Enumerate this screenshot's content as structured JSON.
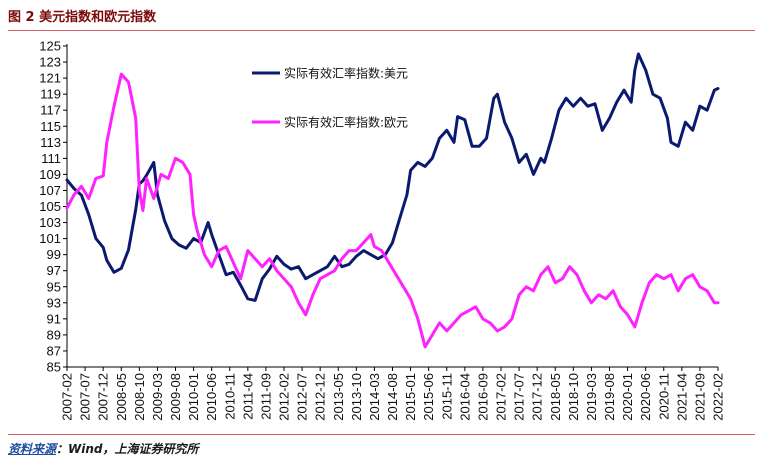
{
  "figure": {
    "title": "图 2  美元指数和欧元指数",
    "source_label": "资料来源",
    "source_text": "：Wind，上海证券研究所"
  },
  "colors": {
    "usd": "#0b1a6e",
    "eur": "#ff22ff",
    "rule": "#d86060",
    "axis": "#000000"
  },
  "chart_data": {
    "type": "line",
    "title": "",
    "xlabel": "",
    "ylabel": "",
    "ylim": [
      85,
      125
    ],
    "yticks": [
      85,
      87,
      89,
      91,
      93,
      95,
      97,
      99,
      101,
      103,
      105,
      107,
      109,
      111,
      113,
      115,
      117,
      119,
      121,
      123,
      125
    ],
    "xlim": [
      "2007-02",
      "2022-02"
    ],
    "xticks": [
      "2007-02",
      "2007-07",
      "2007-12",
      "2008-05",
      "2008-10",
      "2009-03",
      "2009-08",
      "2010-01",
      "2010-06",
      "2010-11",
      "2011-04",
      "2011-09",
      "2012-02",
      "2012-07",
      "2012-12",
      "2013-05",
      "2013-10",
      "2014-03",
      "2014-08",
      "2015-01",
      "2015-06",
      "2015-11",
      "2016-04",
      "2016-09",
      "2017-02",
      "2017-07",
      "2017-12",
      "2018-05",
      "2018-10",
      "2019-03",
      "2019-08",
      "2020-01",
      "2020-06",
      "2020-11",
      "2021-04",
      "2021-09",
      "2022-02"
    ],
    "grid": false,
    "legend": "top-left-inside",
    "series": [
      {
        "name": "实际有效汇率指数:美元",
        "x": [
          "2007-02",
          "2007-04",
          "2007-06",
          "2007-08",
          "2007-10",
          "2007-12",
          "2008-01",
          "2008-03",
          "2008-05",
          "2008-07",
          "2008-09",
          "2008-10",
          "2008-11",
          "2008-12",
          "2009-02",
          "2009-03",
          "2009-05",
          "2009-07",
          "2009-09",
          "2009-11",
          "2010-01",
          "2010-03",
          "2010-05",
          "2010-06",
          "2010-08",
          "2010-10",
          "2010-12",
          "2011-02",
          "2011-04",
          "2011-06",
          "2011-08",
          "2011-10",
          "2011-12",
          "2012-02",
          "2012-04",
          "2012-06",
          "2012-08",
          "2012-10",
          "2012-12",
          "2013-02",
          "2013-04",
          "2013-06",
          "2013-08",
          "2013-10",
          "2013-12",
          "2014-02",
          "2014-04",
          "2014-06",
          "2014-08",
          "2014-10",
          "2014-12",
          "2015-01",
          "2015-03",
          "2015-05",
          "2015-07",
          "2015-09",
          "2015-11",
          "2016-01",
          "2016-02",
          "2016-04",
          "2016-06",
          "2016-08",
          "2016-10",
          "2016-12",
          "2017-01",
          "2017-03",
          "2017-05",
          "2017-07",
          "2017-09",
          "2017-11",
          "2018-01",
          "2018-02",
          "2018-04",
          "2018-06",
          "2018-08",
          "2018-10",
          "2018-12",
          "2019-02",
          "2019-04",
          "2019-06",
          "2019-08",
          "2019-10",
          "2019-12",
          "2020-02",
          "2020-03",
          "2020-04",
          "2020-06",
          "2020-08",
          "2020-10",
          "2020-12",
          "2021-01",
          "2021-03",
          "2021-05",
          "2021-07",
          "2021-09",
          "2021-11",
          "2022-01",
          "2022-02"
        ],
        "values": [
          108.3,
          107.2,
          106.4,
          104.0,
          101.0,
          99.9,
          98.3,
          96.8,
          97.3,
          99.6,
          104.6,
          107.8,
          108.2,
          108.9,
          110.5,
          106.5,
          103.2,
          101.0,
          100.2,
          99.8,
          101.0,
          100.5,
          103.0,
          101.5,
          99.0,
          96.5,
          96.8,
          95.2,
          93.5,
          93.3,
          96.0,
          97.2,
          98.8,
          97.8,
          97.2,
          97.5,
          96.0,
          96.5,
          97.0,
          97.5,
          98.8,
          97.5,
          97.8,
          98.8,
          99.5,
          99.0,
          98.5,
          99.0,
          100.5,
          103.5,
          106.5,
          109.5,
          110.5,
          110.0,
          111.0,
          113.5,
          114.5,
          113.0,
          116.2,
          115.8,
          112.5,
          112.5,
          113.5,
          118.5,
          119.0,
          115.5,
          113.5,
          110.5,
          111.5,
          109.0,
          111.0,
          110.5,
          113.5,
          117.0,
          118.5,
          117.5,
          118.5,
          117.5,
          117.8,
          114.5,
          116.0,
          118.0,
          119.5,
          118.0,
          122.0,
          124.0,
          122.0,
          119.0,
          118.5,
          116.0,
          113.0,
          112.5,
          115.5,
          114.5,
          117.5,
          117.0,
          119.5,
          119.7
        ]
      },
      {
        "name": "实际有效汇率指数:欧元",
        "x": [
          "2007-02",
          "2007-04",
          "2007-06",
          "2007-08",
          "2007-10",
          "2007-12",
          "2008-01",
          "2008-03",
          "2008-05",
          "2008-07",
          "2008-09",
          "2008-10",
          "2008-11",
          "2008-12",
          "2009-02",
          "2009-04",
          "2009-06",
          "2009-08",
          "2009-10",
          "2009-12",
          "2010-01",
          "2010-02",
          "2010-04",
          "2010-06",
          "2010-08",
          "2010-10",
          "2010-12",
          "2011-02",
          "2011-04",
          "2011-06",
          "2011-08",
          "2011-10",
          "2011-12",
          "2012-02",
          "2012-04",
          "2012-06",
          "2012-08",
          "2012-10",
          "2012-12",
          "2013-02",
          "2013-04",
          "2013-06",
          "2013-08",
          "2013-10",
          "2013-12",
          "2014-02",
          "2014-03",
          "2014-05",
          "2014-07",
          "2014-09",
          "2014-11",
          "2015-01",
          "2015-03",
          "2015-05",
          "2015-07",
          "2015-09",
          "2015-11",
          "2016-01",
          "2016-03",
          "2016-05",
          "2016-07",
          "2016-09",
          "2016-11",
          "2017-01",
          "2017-03",
          "2017-05",
          "2017-07",
          "2017-09",
          "2017-11",
          "2018-01",
          "2018-03",
          "2018-05",
          "2018-07",
          "2018-09",
          "2018-11",
          "2019-01",
          "2019-03",
          "2019-05",
          "2019-07",
          "2019-09",
          "2019-11",
          "2020-01",
          "2020-03",
          "2020-05",
          "2020-07",
          "2020-09",
          "2020-11",
          "2021-01",
          "2021-03",
          "2021-05",
          "2021-07",
          "2021-09",
          "2021-11",
          "2022-01",
          "2022-02"
        ],
        "values": [
          104.8,
          106.5,
          107.5,
          106.0,
          108.5,
          108.8,
          113.0,
          117.5,
          121.5,
          120.5,
          116.0,
          107.0,
          104.5,
          108.5,
          106.0,
          109.0,
          108.5,
          111.0,
          110.5,
          109.0,
          104.0,
          102.0,
          99.0,
          97.5,
          99.5,
          100.0,
          98.0,
          96.0,
          99.5,
          98.5,
          97.5,
          98.5,
          97.0,
          96.0,
          95.0,
          93.0,
          91.5,
          94.0,
          96.0,
          96.5,
          97.0,
          98.5,
          99.5,
          99.5,
          100.5,
          101.5,
          100.0,
          99.5,
          98.0,
          96.5,
          95.0,
          93.5,
          91.0,
          87.5,
          89.0,
          90.5,
          89.5,
          90.5,
          91.5,
          92.0,
          92.5,
          91.0,
          90.5,
          89.5,
          90.0,
          91.0,
          94.0,
          95.0,
          94.5,
          96.5,
          97.5,
          95.5,
          96.0,
          97.5,
          96.5,
          94.5,
          93.0,
          94.0,
          93.5,
          94.5,
          92.5,
          91.5,
          90.0,
          93.0,
          95.5,
          96.5,
          96.0,
          96.5,
          94.5,
          96.0,
          96.5,
          95.0,
          94.5,
          93.0,
          93.0
        ]
      }
    ]
  }
}
